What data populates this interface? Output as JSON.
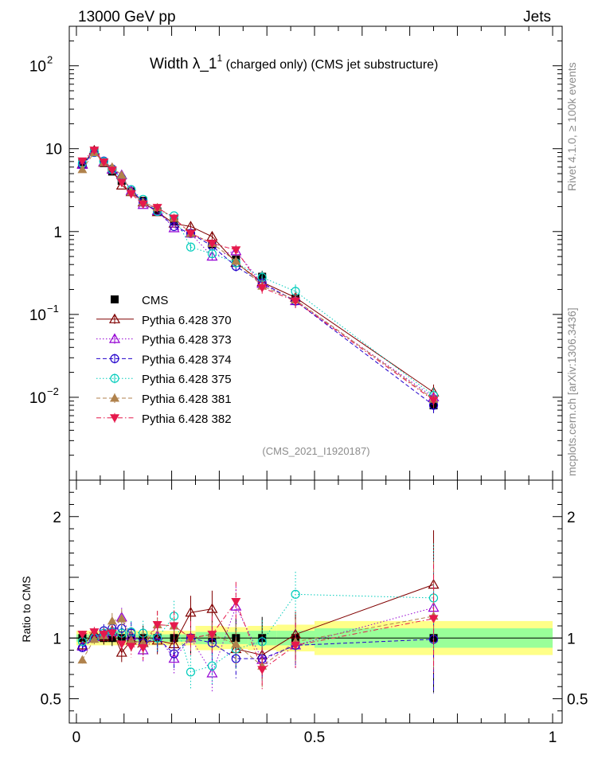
{
  "header": {
    "left": "13000 GeV pp",
    "right": "Jets"
  },
  "title": {
    "main": "Width λ_1",
    "sup": "1",
    "sub": " (charged only) (CMS jet substructure)"
  },
  "side": {
    "rivet": "Rivet 4.1.0, ≥ 100k events",
    "mcplots": "mcplots.cern.ch [arXiv:1306.3436]"
  },
  "watermark": "(CMS_2021_I1920187)",
  "chart_data": {
    "type": "line",
    "x": [
      0.0125,
      0.0375,
      0.0575,
      0.075,
      0.095,
      0.115,
      0.14,
      0.17,
      0.205,
      0.24,
      0.285,
      0.335,
      0.39,
      0.46,
      0.75
    ],
    "main_panel": {
      "yscale": "log",
      "ylim": [
        0.001,
        300
      ],
      "yticks": [
        {
          "value": 0.01,
          "base": "10",
          "exp": "−2"
        },
        {
          "value": 0.1,
          "base": "10",
          "exp": "−1"
        },
        {
          "value": 1,
          "text": "1"
        },
        {
          "value": 10,
          "text": "10"
        },
        {
          "value": 100,
          "base": "10",
          "exp": "2"
        }
      ]
    },
    "ratio_panel": {
      "ylabel": "Ratio to CMS",
      "ylim": [
        0.3,
        2.3
      ],
      "yticks": [
        "0.5",
        "1",
        "2"
      ],
      "ytick_values": [
        0.5,
        1,
        2
      ]
    },
    "xlim": [
      -0.015,
      1.02
    ],
    "xticks": [
      "0",
      "0.5",
      "1"
    ],
    "xtick_values": [
      0,
      0.5,
      1
    ],
    "bands": [
      {
        "x0": 0.0,
        "x1": 0.25,
        "inner": 0.03,
        "outer": 0.06
      },
      {
        "x0": 0.25,
        "x1": 0.31,
        "inner": 0.05,
        "outer": 0.1
      },
      {
        "x0": 0.31,
        "x1": 0.36,
        "inner": 0.05,
        "outer": 0.09
      },
      {
        "x0": 0.36,
        "x1": 0.42,
        "inner": 0.06,
        "outer": 0.1
      },
      {
        "x0": 0.42,
        "x1": 0.5,
        "inner": 0.06,
        "outer": 0.11
      },
      {
        "x0": 0.5,
        "x1": 1.0,
        "inner": 0.08,
        "outer": 0.14
      }
    ],
    "series": [
      {
        "name": "CMS",
        "color": "#000000",
        "marker": "square",
        "line": "none",
        "values": [
          6.9,
          9.1,
          6.7,
          5.3,
          4.1,
          3.05,
          2.35,
          1.75,
          1.32,
          0.95,
          0.7,
          0.46,
          0.285,
          0.155,
          0.008
        ],
        "ratio": [
          1,
          1,
          1,
          1,
          1,
          1,
          1,
          1,
          1,
          1,
          1,
          1,
          1,
          1,
          1
        ]
      },
      {
        "name": "Pythia 6.428 370",
        "color": "#800000",
        "marker": "triangle-open",
        "line": "solid",
        "values": [
          6.5,
          9.5,
          6.8,
          5.6,
          3.6,
          3.0,
          2.25,
          1.72,
          1.25,
          1.15,
          0.87,
          0.42,
          0.245,
          0.16,
          0.0115
        ],
        "ratio": [
          0.94,
          1.04,
          1.01,
          1.06,
          0.88,
          0.98,
          0.96,
          0.98,
          0.95,
          1.21,
          1.24,
          0.91,
          0.86,
          1.03,
          1.44
        ]
      },
      {
        "name": "Pythia 6.428 373",
        "color": "#9400d3",
        "marker": "triangle-open",
        "line": "dotted",
        "values": [
          6.4,
          9.1,
          6.9,
          5.6,
          4.8,
          3.1,
          2.1,
          1.78,
          1.1,
          0.95,
          0.5,
          0.58,
          0.235,
          0.145,
          0.01
        ],
        "ratio": [
          0.93,
          1.01,
          1.03,
          1.05,
          1.17,
          1.02,
          0.9,
          1.02,
          0.83,
          1.0,
          0.71,
          1.26,
          0.82,
          0.94,
          1.25
        ]
      },
      {
        "name": "Pythia 6.428 374",
        "color": "#2200cc",
        "marker": "circle-open",
        "line": "dashed",
        "values": [
          6.4,
          9.0,
          7.1,
          5.7,
          4.4,
          3.2,
          2.25,
          1.75,
          1.15,
          0.95,
          0.67,
          0.38,
          0.24,
          0.145,
          0.008
        ],
        "ratio": [
          0.92,
          1.0,
          1.06,
          1.08,
          1.08,
          1.04,
          0.96,
          1.0,
          0.87,
          1.0,
          0.96,
          0.83,
          0.83,
          0.94,
          0.99
        ]
      },
      {
        "name": "Pythia 6.428 375",
        "color": "#00ccbb",
        "marker": "circle-open",
        "line": "dotted",
        "values": [
          6.7,
          9.1,
          7.0,
          5.6,
          4.3,
          3.2,
          2.45,
          1.75,
          1.55,
          0.65,
          0.54,
          0.42,
          0.28,
          0.19,
          0.0105
        ],
        "ratio": [
          0.97,
          1.0,
          1.04,
          1.05,
          1.04,
          1.05,
          1.04,
          1.0,
          1.18,
          0.72,
          0.77,
          0.91,
          0.97,
          1.36,
          1.33
        ]
      },
      {
        "name": "Pythia 6.428 381",
        "color": "#b0824c",
        "marker": "triangle-filled",
        "line": "dashed",
        "values": [
          5.6,
          9.0,
          6.8,
          6.0,
          4.8,
          3.0,
          2.25,
          1.95,
          1.45,
          0.95,
          0.72,
          0.44,
          0.22,
          0.15,
          0.0095
        ],
        "ratio": [
          0.82,
          0.99,
          1.02,
          1.14,
          1.16,
          0.98,
          0.96,
          1.11,
          1.1,
          1.0,
          1.03,
          0.95,
          0.77,
          0.97,
          1.18
        ]
      },
      {
        "name": "Pythia 6.428 382",
        "color": "#e5194c",
        "marker": "triangle-down-filled",
        "line": "dashdot",
        "values": [
          7.1,
          9.6,
          6.9,
          5.5,
          3.9,
          2.85,
          2.15,
          1.95,
          1.45,
          0.95,
          0.72,
          0.6,
          0.21,
          0.145,
          0.0092
        ],
        "ratio": [
          1.03,
          1.05,
          1.03,
          1.04,
          0.95,
          0.93,
          0.92,
          1.11,
          1.1,
          1.0,
          1.03,
          1.3,
          0.74,
          0.94,
          1.16
        ]
      }
    ]
  }
}
